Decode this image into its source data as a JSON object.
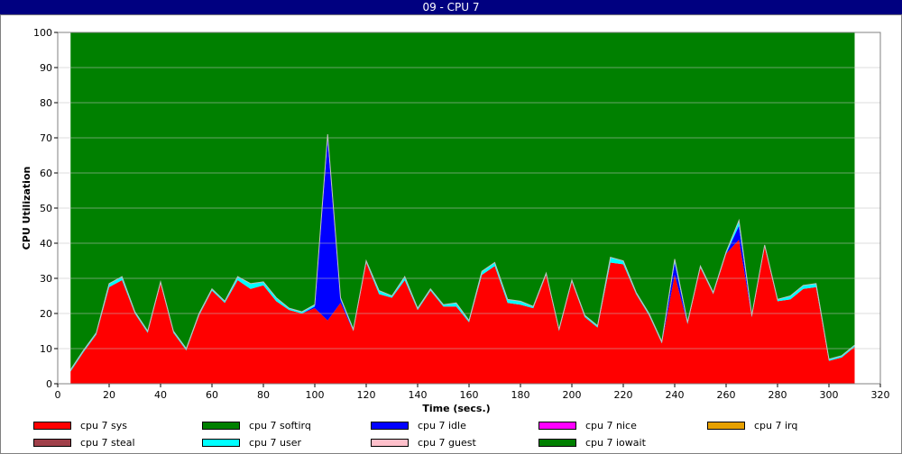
{
  "window": {
    "title": "09 - CPU 7"
  },
  "chart_data": {
    "type": "area",
    "stacked": true,
    "title": "09 - CPU 7",
    "xlabel": "Time (secs.)",
    "ylabel": "CPU Utilization",
    "xlim": [
      0,
      320
    ],
    "ylim": [
      0,
      100
    ],
    "x_ticks": [
      0,
      20,
      40,
      60,
      80,
      100,
      120,
      140,
      160,
      180,
      200,
      220,
      240,
      260,
      280,
      300,
      320
    ],
    "y_ticks": [
      0,
      10,
      20,
      30,
      40,
      50,
      60,
      70,
      80,
      90,
      100
    ],
    "grid": "horizontal",
    "legend_position": "bottom",
    "x": [
      5,
      10,
      15,
      20,
      25,
      30,
      35,
      40,
      45,
      50,
      55,
      60,
      65,
      70,
      75,
      80,
      85,
      90,
      95,
      100,
      105,
      110,
      115,
      120,
      125,
      130,
      135,
      140,
      145,
      150,
      155,
      160,
      165,
      170,
      175,
      180,
      185,
      190,
      195,
      200,
      205,
      210,
      215,
      220,
      225,
      230,
      235,
      240,
      245,
      250,
      255,
      260,
      265,
      270,
      275,
      280,
      285,
      290,
      295,
      300,
      305,
      310
    ],
    "series": [
      {
        "name": "cpu 7 sys",
        "color": "#ff0000",
        "values": [
          3.5,
          9,
          14,
          27.5,
          29.5,
          20,
          14.5,
          28.5,
          14.5,
          9.5,
          19.5,
          26.5,
          23,
          29.5,
          27,
          28,
          23.5,
          21,
          20,
          21.5,
          18,
          23,
          15,
          34.5,
          25.5,
          24.5,
          29.5,
          21,
          26.5,
          22,
          22,
          17.5,
          31,
          33.5,
          23,
          22.5,
          21.5,
          31,
          15,
          29,
          19,
          16,
          34.5,
          34,
          25.5,
          19.5,
          11.5,
          31,
          17,
          33,
          25.5,
          37,
          41,
          19,
          39,
          23.5,
          24,
          27,
          27.5,
          6.5,
          7.5,
          10.5
        ]
      },
      {
        "name": "cpu 7 softirq",
        "color": "#008000",
        "values": [
          0,
          0,
          0,
          0,
          0,
          0,
          0,
          0,
          0,
          0,
          0,
          0,
          0,
          0,
          0,
          0,
          0,
          0,
          0,
          0,
          0,
          0,
          0,
          0,
          0,
          0,
          0,
          0,
          0,
          0,
          0,
          0,
          0,
          0,
          0,
          0,
          0,
          0,
          0,
          0,
          0,
          0,
          0,
          0,
          0,
          0,
          0,
          0,
          0,
          0,
          0,
          0,
          0,
          0,
          0,
          0,
          0,
          0,
          0,
          0,
          0,
          0
        ]
      },
      {
        "name": "cpu 7 idle",
        "color": "#0000ff",
        "values": [
          0,
          0,
          0,
          0,
          0,
          0,
          0,
          0,
          0,
          0,
          0,
          0,
          0,
          0,
          0,
          0,
          0,
          0,
          0,
          0.5,
          52,
          1,
          0,
          0,
          0,
          0,
          0,
          0,
          0,
          0,
          0,
          0,
          0,
          0,
          0,
          0,
          0,
          0,
          0,
          0,
          0,
          0,
          0,
          0,
          0,
          0,
          0,
          3.5,
          0,
          0,
          0,
          0,
          4,
          0,
          0,
          0,
          0,
          0,
          0,
          0,
          0,
          0
        ]
      },
      {
        "name": "cpu 7 nice",
        "color": "#ff00ff",
        "values": [
          0,
          0,
          0,
          0,
          0,
          0,
          0,
          0,
          0,
          0,
          0,
          0,
          0,
          0,
          0,
          0,
          0,
          0,
          0,
          0,
          0,
          0,
          0,
          0,
          0,
          0,
          0,
          0,
          0,
          0,
          0,
          0,
          0,
          0,
          0,
          0,
          0,
          0,
          0,
          0,
          0,
          0,
          0,
          0,
          0,
          0,
          0,
          0,
          0,
          0,
          0,
          0,
          0,
          0,
          0,
          0,
          0,
          0,
          0,
          0,
          0,
          0
        ]
      },
      {
        "name": "cpu 7 irq",
        "color": "#e6a000",
        "values": [
          0,
          0,
          0,
          0,
          0,
          0,
          0,
          0,
          0,
          0,
          0,
          0,
          0,
          0,
          0,
          0,
          0,
          0,
          0,
          0,
          0,
          0,
          0,
          0,
          0,
          0,
          0,
          0,
          0,
          0,
          0,
          0,
          0,
          0,
          0,
          0,
          0,
          0,
          0,
          0,
          0,
          0,
          0,
          0,
          0,
          0,
          0,
          0,
          0,
          0,
          0,
          0,
          0,
          0,
          0,
          0,
          0,
          0,
          0,
          0,
          0,
          0
        ]
      },
      {
        "name": "cpu 7 steal",
        "color": "#a0404a",
        "values": [
          0,
          0,
          0,
          0,
          0,
          0,
          0,
          0,
          0,
          0,
          0,
          0,
          0,
          0,
          0,
          0,
          0,
          0,
          0,
          0,
          0,
          0,
          0,
          0,
          0,
          0,
          0,
          0,
          0,
          0,
          0,
          0,
          0,
          0,
          0,
          0,
          0,
          0,
          0,
          0,
          0,
          0,
          0,
          0,
          0,
          0,
          0,
          0,
          0,
          0,
          0,
          0,
          0,
          0,
          0,
          0,
          0,
          0,
          0,
          0,
          0,
          0
        ]
      },
      {
        "name": "cpu 7 user",
        "color": "#00ffff",
        "values": [
          0.5,
          0.5,
          0.5,
          1,
          1,
          0.5,
          0.5,
          0.5,
          0.5,
          0.5,
          0.5,
          0.5,
          0.5,
          1,
          1.5,
          1,
          1,
          0.5,
          0.5,
          0.5,
          1,
          0.5,
          0.5,
          0.5,
          1,
          0.5,
          1,
          0.5,
          0.5,
          0.5,
          1,
          0.5,
          1,
          1,
          1,
          1,
          0.5,
          0.5,
          0.5,
          0.5,
          0.5,
          0.5,
          1.5,
          1,
          0.5,
          0.5,
          0.5,
          1,
          0.5,
          0.5,
          0.5,
          0.5,
          1.5,
          0.5,
          0.5,
          0.5,
          1,
          1,
          1,
          0.5,
          0.5,
          0.5
        ]
      },
      {
        "name": "cpu 7 guest",
        "color": "#ffc0cb",
        "values": [
          0,
          0,
          0,
          0,
          0,
          0,
          0,
          0,
          0,
          0,
          0,
          0,
          0,
          0,
          0,
          0,
          0,
          0,
          0,
          0,
          0,
          0,
          0,
          0,
          0,
          0,
          0,
          0,
          0,
          0,
          0,
          0,
          0,
          0,
          0,
          0,
          0,
          0,
          0,
          0,
          0,
          0,
          0,
          0,
          0,
          0,
          0,
          0,
          0,
          0,
          0,
          0,
          0,
          0,
          0,
          0,
          0,
          0,
          0,
          0,
          0,
          0
        ]
      },
      {
        "name": "cpu 7 iowait",
        "color": "#008000",
        "values": [
          96,
          90.5,
          85.5,
          71.5,
          69.5,
          79.5,
          85,
          71,
          85,
          90,
          80,
          73,
          76.5,
          69.5,
          71.5,
          71,
          75.5,
          78.5,
          79.5,
          77.5,
          29,
          75.5,
          84.5,
          65,
          73.5,
          75,
          69.5,
          78.5,
          73,
          77.5,
          77,
          82,
          68,
          65.5,
          76,
          76.5,
          78,
          68.5,
          84.5,
          70.5,
          80.5,
          83.5,
          64,
          65,
          74,
          80,
          88,
          64.5,
          82.5,
          66.5,
          74,
          62.5,
          53.5,
          80.5,
          60.5,
          76,
          75,
          72,
          71.5,
          93,
          92,
          89
        ]
      }
    ]
  }
}
